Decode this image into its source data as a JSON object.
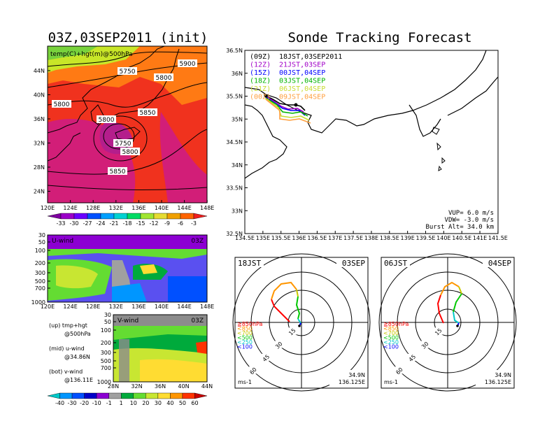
{
  "page": {
    "title_left": "03Z,03SEP2011 (init)",
    "title_right": "Sonde Tracking Forecast"
  },
  "map500": {
    "label": "temp(C)+hgt(m)@500hPa",
    "lat_ticks": [
      "44N",
      "40N",
      "36N",
      "32N",
      "28N",
      "24N"
    ],
    "lon_ticks": [
      "120E",
      "124E",
      "128E",
      "132E",
      "136E",
      "140E",
      "144E",
      "148E"
    ],
    "contour_labels": [
      "5900",
      "5750",
      "5800",
      "5800",
      "5850",
      "5800",
      "5750",
      "5800",
      "5850"
    ],
    "colorbar": {
      "labels": [
        "-33",
        "-30",
        "-27",
        "-24",
        "-21",
        "-18",
        "-15",
        "-12",
        "-9",
        "-6",
        "-3"
      ],
      "colors": [
        "#7f00a0",
        "#9b00c8",
        "#6a00ff",
        "#0050ff",
        "#00a0ff",
        "#00d2d2",
        "#00dc64",
        "#a0e632",
        "#e6dc32",
        "#f0a000",
        "#ff6400",
        "#f01e1e"
      ]
    }
  },
  "uwind": {
    "label": "U-wind",
    "time": "03Z",
    "y_ticks": [
      "30",
      "50",
      "100",
      "200",
      "300",
      "500",
      "700",
      "1000"
    ],
    "x_ticks": [
      "120E",
      "124E",
      "128E",
      "132E",
      "136E",
      "140E",
      "144E",
      "148E"
    ]
  },
  "vwind": {
    "label": "V-wind",
    "time": "03Z",
    "y_ticks": [
      "30",
      "50",
      "100",
      "200",
      "300",
      "500",
      "700",
      "1000"
    ],
    "x_ticks": [
      "28N",
      "32N",
      "36N",
      "40N",
      "44N"
    ],
    "colorbar": {
      "labels": [
        "-40",
        "-30",
        "-20",
        "-10",
        "-1",
        "1",
        "10",
        "20",
        "30",
        "40",
        "50",
        "60"
      ],
      "colors": [
        "#00c8c8",
        "#0096ff",
        "#0050ff",
        "#0000c8",
        "#8c00d2",
        "#a0a0a0",
        "#00aa3c",
        "#64dc32",
        "#c8e632",
        "#ffdc32",
        "#ff9600",
        "#ff3200",
        "#c80000"
      ]
    }
  },
  "legend_notes": [
    {
      "a": "(up)  tmp+hgt",
      "b": "@500hPa"
    },
    {
      "a": "(mid)  u-wind",
      "b": "@34.86N"
    },
    {
      "a": "(bot)  v-wind",
      "b": "@136.11E"
    }
  ],
  "track": {
    "lat_ticks": [
      "36.5N",
      "36N",
      "35.5N",
      "35N",
      "34.5N",
      "34N",
      "33.5N",
      "33N",
      "32.5N"
    ],
    "lon_ticks": [
      "134.5E",
      "135E",
      "135.5E",
      "136E",
      "136.5E",
      "137E",
      "137.5E",
      "138E",
      "138.5E",
      "139E",
      "139.5E",
      "140E",
      "140.5E",
      "141E",
      "141.5E"
    ],
    "runs": [
      {
        "tag": "(09Z)",
        "time": "18JST,03SEP2011",
        "color": "#000000"
      },
      {
        "tag": "(12Z)",
        "time": "21JST,03SEP",
        "color": "#a000c8"
      },
      {
        "tag": "(15Z)",
        "time": "00JST,04SEP",
        "color": "#0000ff"
      },
      {
        "tag": "(18Z)",
        "time": "03JST,04SEP",
        "color": "#00b400"
      },
      {
        "tag": "(21Z)",
        "time": "06JST,04SEP",
        "color": "#c8dc32"
      },
      {
        "tag": "(00Z)",
        "time": "09JST,04SEP",
        "color": "#ffa040"
      }
    ],
    "params": [
      "VUP=  6.0  m/s",
      "VDW= -3.0  m/s",
      "Burst Alt=  34.0  km"
    ]
  },
  "hodo": [
    {
      "time": "18JST",
      "date": "03SEP",
      "lat": "34.9N",
      "lon": "136.125E",
      "unit": "ms-1",
      "rings": [
        "15",
        "30",
        "45",
        "60"
      ]
    },
    {
      "time": "06JST",
      "date": "04SEP",
      "lat": "34.9N",
      "lon": "136.125E",
      "unit": "ms-1",
      "rings": [
        "15",
        "30",
        "45",
        "60"
      ]
    }
  ],
  "hodo_levels": [
    {
      "label": "≧850hPa",
      "color": "#ff0000"
    },
    {
      "label": "<850",
      "color": "#ff9600"
    },
    {
      "label": "<700",
      "color": "#c8c800"
    },
    {
      "label": "<500",
      "color": "#00c800"
    },
    {
      "label": "<250",
      "color": "#00c8c8"
    },
    {
      "label": "<100",
      "color": "#0000ff"
    }
  ]
}
